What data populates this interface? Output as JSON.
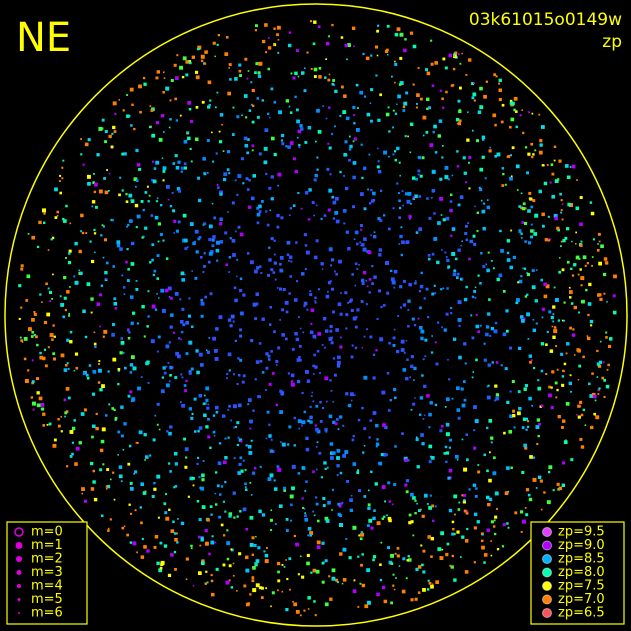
{
  "header": {
    "direction": "NE",
    "frame_id": "03k61015o0149w",
    "color_key": "zp"
  },
  "magnitude_legend": {
    "items": [
      "m=0",
      "m=1",
      "m=2",
      "m=3",
      "m=4",
      "m=5",
      "m=6"
    ],
    "color": "#e000e0"
  },
  "zp_legend": {
    "items": [
      {
        "label": "zp=9.5",
        "color": "#e040ff"
      },
      {
        "label": "zp=9.0",
        "color": "#b000ff"
      },
      {
        "label": "zp=8.5",
        "color": "#00b0ff"
      },
      {
        "label": "zp=8.0",
        "color": "#00ffb0"
      },
      {
        "label": "zp=7.5",
        "color": "#ffff00"
      },
      {
        "label": "zp=7.0",
        "color": "#ff8000"
      },
      {
        "label": "zp=6.5",
        "color": "#ff5060"
      }
    ]
  }
}
